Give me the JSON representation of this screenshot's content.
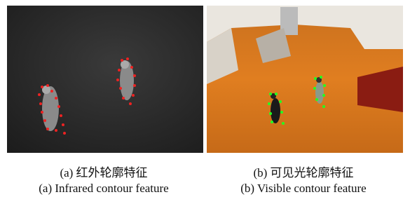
{
  "figure": {
    "panels": [
      {
        "caption_zh": "(a) 红外轮廓特征",
        "caption_en": "(a) Infrared contour feature"
      },
      {
        "caption_zh": "(b) 可见光轮廓特征",
        "caption_en": "(b) Visible contour feature"
      }
    ]
  }
}
